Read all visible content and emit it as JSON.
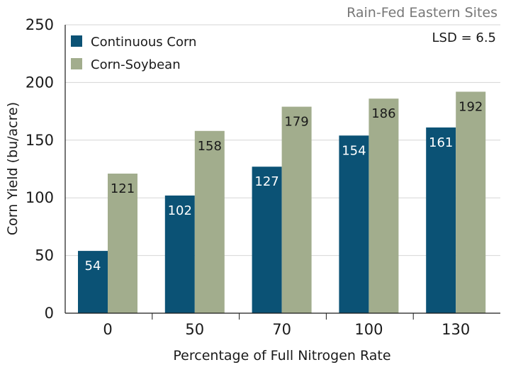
{
  "chart_data": {
    "type": "bar",
    "subtitle": "Rain-Fed Eastern Sites",
    "annotation": "LSD = 6.5",
    "xlabel": "Percentage of Full Nitrogen Rate",
    "ylabel": "Corn Yield (bu/acre)",
    "ylim": [
      0,
      250
    ],
    "yticks": [
      "0",
      "50",
      "100",
      "150",
      "200",
      "250"
    ],
    "categories": [
      "0",
      "50",
      "70",
      "100",
      "130"
    ],
    "series": [
      {
        "name": "Continuous Corn",
        "color": "#0b5275",
        "label_color": "#ffffff",
        "values": [
          54,
          102,
          127,
          154,
          161
        ]
      },
      {
        "name": "Corn-Soybean",
        "color": "#a2ad8d",
        "label_color": "#1a1a1a",
        "values": [
          121,
          158,
          179,
          186,
          192
        ]
      }
    ],
    "grid": "horizontal",
    "legend_position": "top-left"
  }
}
